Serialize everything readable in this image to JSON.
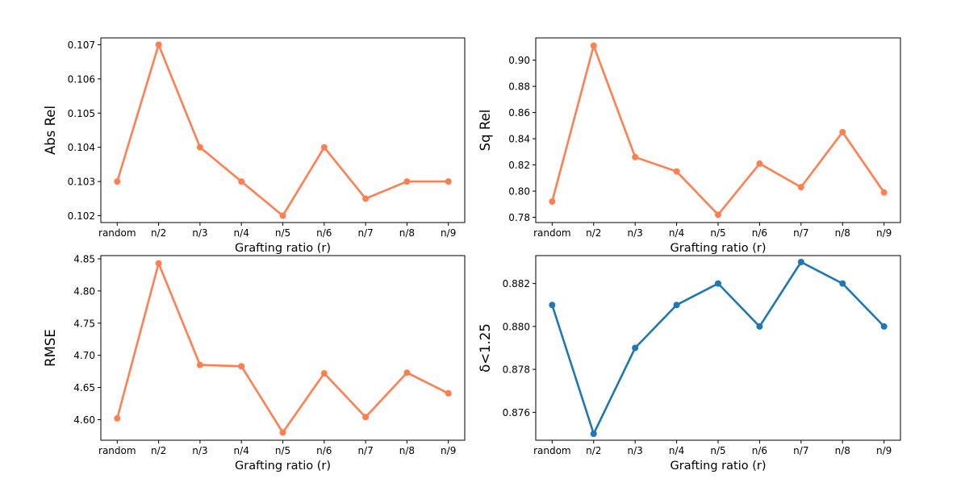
{
  "chart_data": [
    {
      "type": "line",
      "categories": [
        "random",
        "n/2",
        "n/3",
        "n/4",
        "n/5",
        "n/6",
        "n/7",
        "n/8",
        "n/9"
      ],
      "values": [
        0.103,
        0.107,
        0.104,
        0.103,
        0.102,
        0.104,
        0.1025,
        0.103,
        0.103
      ],
      "xlabel": "Grafting ratio (r)",
      "ylabel": "Abs Rel",
      "ylim": [
        0.1018,
        0.1072
      ],
      "yticks": [
        0.102,
        0.103,
        0.104,
        0.105,
        0.106,
        0.107
      ],
      "ytick_labels": [
        "0.102",
        "0.103",
        "0.104",
        "0.105",
        "0.106",
        "0.107"
      ],
      "color": "#ff7f50",
      "grid": false
    },
    {
      "type": "line",
      "categories": [
        "random",
        "n/2",
        "n/3",
        "n/4",
        "n/5",
        "n/6",
        "n/7",
        "n/8",
        "n/9"
      ],
      "values": [
        0.792,
        0.911,
        0.826,
        0.815,
        0.782,
        0.821,
        0.803,
        0.845,
        0.799
      ],
      "xlabel": "Grafting ratio (r)",
      "ylabel": "Sq Rel",
      "ylim": [
        0.776,
        0.917
      ],
      "yticks": [
        0.78,
        0.8,
        0.82,
        0.84,
        0.86,
        0.88,
        0.9
      ],
      "ytick_labels": [
        "0.78",
        "0.80",
        "0.82",
        "0.84",
        "0.86",
        "0.88",
        "0.90"
      ],
      "color": "#ff7f50",
      "grid": false
    },
    {
      "type": "line",
      "categories": [
        "random",
        "n/2",
        "n/3",
        "n/4",
        "n/5",
        "n/6",
        "n/7",
        "n/8",
        "n/9"
      ],
      "values": [
        4.602,
        4.843,
        4.685,
        4.683,
        4.58,
        4.672,
        4.604,
        4.673,
        4.641
      ],
      "xlabel": "Grafting ratio (r)",
      "ylabel": "RMSE",
      "ylim": [
        4.568,
        4.855
      ],
      "yticks": [
        4.6,
        4.65,
        4.7,
        4.75,
        4.8,
        4.85
      ],
      "ytick_labels": [
        "4.60",
        "4.65",
        "4.70",
        "4.75",
        "4.80",
        "4.85"
      ],
      "color": "#ff7f50",
      "grid": false
    },
    {
      "type": "line",
      "categories": [
        "random",
        "n/2",
        "n/3",
        "n/4",
        "n/5",
        "n/6",
        "n/7",
        "n/8",
        "n/9"
      ],
      "values": [
        0.881,
        0.875,
        0.879,
        0.881,
        0.882,
        0.88,
        0.883,
        0.882,
        0.88
      ],
      "xlabel": "Grafting ratio (r)",
      "ylabel": "δ<1.25",
      "ylim": [
        0.8747,
        0.8833
      ],
      "yticks": [
        0.876,
        0.878,
        0.88,
        0.882
      ],
      "ytick_labels": [
        "0.876",
        "0.878",
        "0.880",
        "0.882"
      ],
      "color": "#1f77b4",
      "grid": false
    }
  ]
}
